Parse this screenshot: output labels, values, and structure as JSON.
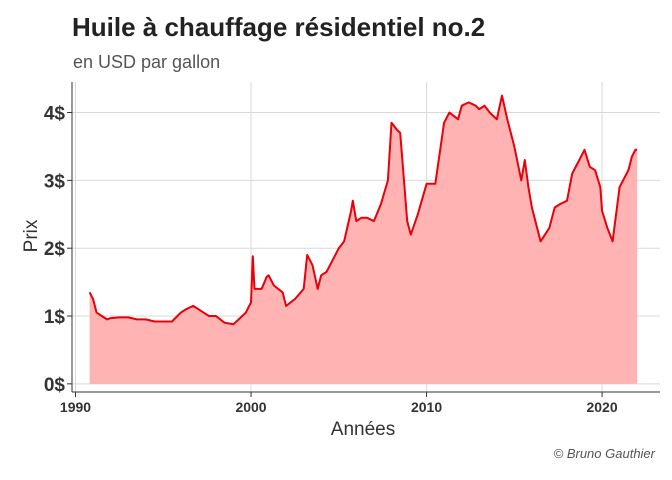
{
  "chart_data": {
    "type": "area",
    "title": "Huile à chauffage résidentiel no.2",
    "subtitle": "en USD par gallon",
    "xlabel": "Années",
    "ylabel": "Prix",
    "caption": "© Bruno Gauthier",
    "xlim": [
      1989.8,
      2023.3
    ],
    "ylim": [
      -0.12,
      4.45
    ],
    "x_ticks": [
      1990,
      2000,
      2010,
      2020
    ],
    "y_ticks": [
      {
        "value": 0,
        "label": "0$"
      },
      {
        "value": 1,
        "label": "1$"
      },
      {
        "value": 2,
        "label": "2$"
      },
      {
        "value": 3,
        "label": "3$"
      },
      {
        "value": 4,
        "label": "4$"
      }
    ],
    "grid": true,
    "colors": {
      "line": "#e8000b",
      "fill": "#ffb3b3",
      "grid": "#d9d9d9",
      "axis": "#333333"
    },
    "series": [
      {
        "x": [
          1990.8,
          1991.0,
          1991.2,
          1991.5,
          1991.8,
          1992.0,
          1992.5,
          1993.0,
          1993.5,
          1994.0,
          1994.5,
          1995.0,
          1995.5,
          1996.0,
          1996.3,
          1996.7,
          1997.0,
          1997.3,
          1997.6,
          1998.0,
          1998.5,
          1999.0,
          1999.3,
          1999.7,
          2000.0,
          2000.1,
          2000.2,
          2000.6,
          2000.9,
          2001.0,
          2001.3,
          2001.8,
          2002.0,
          2002.5,
          2003.0,
          2003.2,
          2003.5,
          2003.8,
          2004.0,
          2004.3,
          2004.6,
          2005.0,
          2005.3,
          2005.7,
          2005.8,
          2006.0,
          2006.3,
          2006.6,
          2007.0,
          2007.4,
          2007.8,
          2008.0,
          2008.3,
          2008.5,
          2008.9,
          2009.1,
          2009.5,
          2010.0,
          2010.5,
          2011.0,
          2011.3,
          2011.8,
          2012.0,
          2012.4,
          2012.8,
          2013.0,
          2013.3,
          2013.6,
          2014.0,
          2014.3,
          2014.6,
          2015.0,
          2015.4,
          2015.6,
          2015.8,
          2016.0,
          2016.5,
          2017.0,
          2017.3,
          2017.6,
          2018.0,
          2018.3,
          2018.7,
          2019.0,
          2019.3,
          2019.6,
          2019.9,
          2020.0,
          2020.3,
          2020.6,
          2021.0,
          2021.5,
          2021.7,
          2021.9,
          2022.0
        ],
        "values": [
          1.35,
          1.25,
          1.05,
          1.0,
          0.95,
          0.97,
          0.98,
          0.98,
          0.95,
          0.95,
          0.92,
          0.92,
          0.92,
          1.05,
          1.1,
          1.15,
          1.1,
          1.05,
          1.0,
          1.0,
          0.9,
          0.88,
          0.95,
          1.05,
          1.2,
          1.88,
          1.4,
          1.4,
          1.58,
          1.6,
          1.45,
          1.35,
          1.15,
          1.25,
          1.4,
          1.9,
          1.75,
          1.4,
          1.6,
          1.65,
          1.8,
          2.0,
          2.1,
          2.55,
          2.7,
          2.4,
          2.45,
          2.45,
          2.4,
          2.65,
          3.0,
          3.85,
          3.75,
          3.7,
          2.4,
          2.2,
          2.5,
          2.95,
          2.95,
          3.85,
          4.0,
          3.9,
          4.1,
          4.15,
          4.1,
          4.05,
          4.1,
          4.0,
          3.9,
          4.25,
          3.9,
          3.5,
          3.0,
          3.3,
          2.9,
          2.6,
          2.1,
          2.3,
          2.6,
          2.65,
          2.7,
          3.1,
          3.3,
          3.45,
          3.2,
          3.15,
          2.9,
          2.55,
          2.3,
          2.1,
          2.9,
          3.15,
          3.35,
          3.45,
          3.45
        ]
      }
    ]
  }
}
